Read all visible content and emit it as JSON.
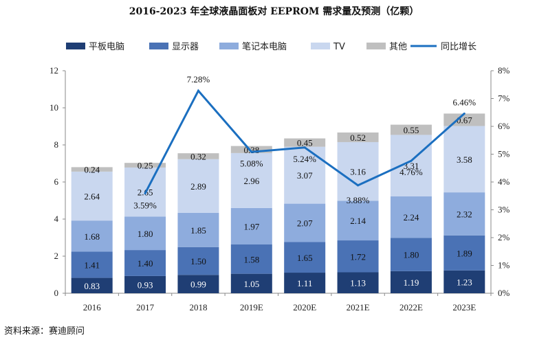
{
  "chart_data": {
    "type": "bar",
    "stacked": true,
    "title": "2016-2023 年全球液晶面板对 EEPROM 需求量及预测（亿颗）",
    "source": "资料来源：赛迪顾问",
    "categories": [
      "2016",
      "2017",
      "2018",
      "2019E",
      "2020E",
      "2021E",
      "2022E",
      "2023E"
    ],
    "series": [
      {
        "name": "平板电脑",
        "color": "#1f3e74",
        "values": [
          0.83,
          0.93,
          0.99,
          1.05,
          1.11,
          1.13,
          1.19,
          1.23
        ],
        "labels": [
          "0.83",
          "0.93",
          "0.99",
          "1.05",
          "1.11",
          "1.13",
          "1.19",
          "1.23"
        ]
      },
      {
        "name": "显示器",
        "color": "#4a72b5",
        "values": [
          1.41,
          1.4,
          1.5,
          1.58,
          1.65,
          1.72,
          1.8,
          1.89
        ],
        "labels": [
          "1.41",
          "1.40",
          "1.50",
          "1.58",
          "1.65",
          "1.72",
          "1.80",
          "1.89"
        ]
      },
      {
        "name": "笔记本电脑",
        "color": "#8eacdd",
        "values": [
          1.68,
          1.8,
          1.85,
          1.97,
          2.07,
          2.14,
          2.24,
          2.32
        ],
        "labels": [
          "1.68",
          "1.80",
          "1.85",
          "1.97",
          "2.07",
          "2.14",
          "2.24",
          "2.32"
        ]
      },
      {
        "name": "TV",
        "color": "#c9d7ef",
        "values": [
          2.64,
          2.65,
          2.89,
          2.96,
          3.07,
          3.16,
          3.31,
          3.58
        ],
        "labels": [
          "2.64",
          "2.65",
          "2.89",
          "2.96",
          "3.07",
          "3.16",
          "3.31",
          "3.58"
        ]
      },
      {
        "name": "其他",
        "color": "#bfbfbf",
        "values": [
          0.24,
          0.25,
          0.32,
          0.38,
          0.45,
          0.52,
          0.55,
          0.67
        ],
        "labels": [
          "0.24",
          "0.25",
          "0.32",
          "0.38",
          "0.45",
          "0.52",
          "0.55",
          "0.67"
        ]
      }
    ],
    "line": {
      "name": "同比增长",
      "color": "#1b6fc0",
      "axis": "right",
      "x": [
        "2017",
        "2018",
        "2019E",
        "2020E",
        "2021E",
        "2022E",
        "2023E"
      ],
      "values": [
        3.59,
        7.28,
        5.08,
        5.24,
        3.88,
        4.76,
        6.46
      ],
      "labels": [
        "3.59%",
        "7.28%",
        "5.08%",
        "5.24%",
        "3.88%",
        "4.76%",
        "6.46%"
      ]
    },
    "y_left": {
      "min": 0,
      "max": 12,
      "ticks": [
        "0",
        "2",
        "4",
        "6",
        "8",
        "10",
        "12"
      ]
    },
    "y_right": {
      "min": 0,
      "max": 8,
      "ticks": [
        "0%",
        "1%",
        "2%",
        "3%",
        "4%",
        "5%",
        "6%",
        "7%",
        "8%"
      ]
    },
    "legend_position": "top",
    "grid": false
  }
}
